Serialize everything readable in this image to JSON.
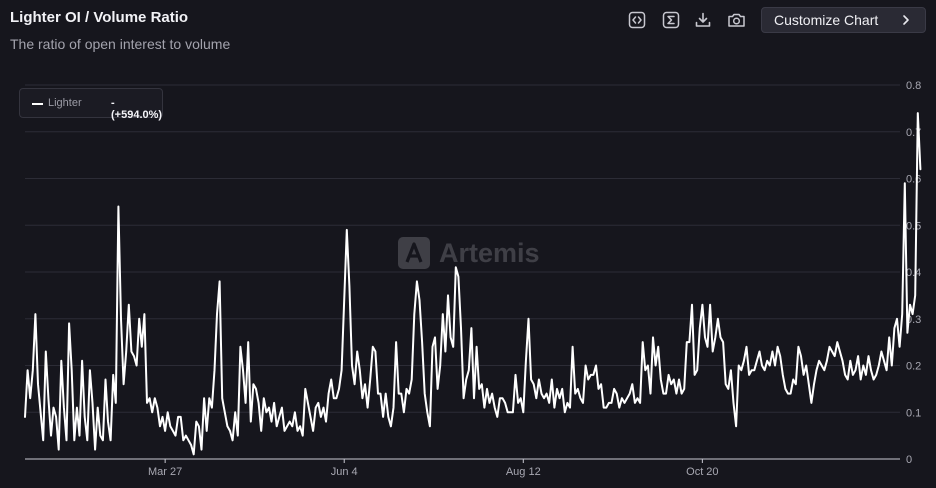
{
  "header": {
    "title": "Lighter OI / Volume Ratio",
    "subtitle": "The ratio of open interest to volume",
    "customize_label": "Customize Chart"
  },
  "toolbar": {
    "icons": [
      "embed-code-icon",
      "sigma-icon",
      "download-icon",
      "camera-icon"
    ]
  },
  "legend": {
    "name": "Lighter",
    "change": "- (+594.0%)"
  },
  "watermark": {
    "text": "Artemis"
  },
  "colors": {
    "background": "#16161d",
    "line": "#ffffff",
    "grid": "#2c2c36",
    "axis_text": "#a8a8b2"
  },
  "chart_data": {
    "type": "line",
    "title": "Lighter OI / Volume Ratio",
    "subtitle": "The ratio of open interest to volume",
    "xlabel": "",
    "ylabel": "",
    "x_tick_labels": [
      "Mar 27",
      "Jun 4",
      "Aug 12",
      "Oct 20"
    ],
    "x_tick_days": [
      54,
      123,
      192,
      261
    ],
    "x_range_days": [
      0,
      336
    ],
    "y_ticks": [
      0,
      0.1,
      0.2,
      0.3,
      0.4,
      0.5,
      0.6,
      0.7,
      0.8
    ],
    "ylim": [
      0,
      0.8
    ],
    "y_axis_side": "right",
    "grid": true,
    "legend_position": "top-left",
    "series": [
      {
        "name": "Lighter",
        "x_day_step": 1,
        "values": [
          0.09,
          0.19,
          0.13,
          0.19,
          0.31,
          0.16,
          0.1,
          0.04,
          0.23,
          0.13,
          0.05,
          0.11,
          0.09,
          0.02,
          0.21,
          0.11,
          0.04,
          0.29,
          0.19,
          0.04,
          0.11,
          0.05,
          0.21,
          0.09,
          0.04,
          0.19,
          0.12,
          0.02,
          0.11,
          0.05,
          0.04,
          0.17,
          0.08,
          0.04,
          0.18,
          0.12,
          0.54,
          0.3,
          0.16,
          0.23,
          0.33,
          0.23,
          0.22,
          0.2,
          0.3,
          0.24,
          0.31,
          0.12,
          0.13,
          0.1,
          0.13,
          0.11,
          0.07,
          0.09,
          0.06,
          0.1,
          0.07,
          0.06,
          0.05,
          0.09,
          0.09,
          0.04,
          0.05,
          0.04,
          0.03,
          0.01,
          0.08,
          0.07,
          0.02,
          0.13,
          0.06,
          0.13,
          0.11,
          0.19,
          0.31,
          0.38,
          0.13,
          0.1,
          0.07,
          0.06,
          0.04,
          0.1,
          0.05,
          0.24,
          0.19,
          0.12,
          0.25,
          0.08,
          0.16,
          0.15,
          0.12,
          0.06,
          0.13,
          0.1,
          0.11,
          0.08,
          0.12,
          0.07,
          0.09,
          0.11,
          0.06,
          0.07,
          0.08,
          0.07,
          0.1,
          0.06,
          0.07,
          0.05,
          0.15,
          0.12,
          0.09,
          0.06,
          0.11,
          0.12,
          0.09,
          0.11,
          0.08,
          0.14,
          0.17,
          0.13,
          0.13,
          0.15,
          0.19,
          0.34,
          0.49,
          0.37,
          0.2,
          0.16,
          0.23,
          0.19,
          0.13,
          0.16,
          0.11,
          0.17,
          0.24,
          0.23,
          0.14,
          0.14,
          0.09,
          0.14,
          0.09,
          0.07,
          0.11,
          0.25,
          0.14,
          0.14,
          0.1,
          0.15,
          0.14,
          0.17,
          0.31,
          0.38,
          0.34,
          0.25,
          0.14,
          0.1,
          0.07,
          0.24,
          0.26,
          0.15,
          0.2,
          0.31,
          0.23,
          0.35,
          0.26,
          0.24,
          0.41,
          0.39,
          0.28,
          0.13,
          0.17,
          0.19,
          0.28,
          0.13,
          0.24,
          0.15,
          0.16,
          0.11,
          0.15,
          0.12,
          0.14,
          0.11,
          0.09,
          0.13,
          0.13,
          0.12,
          0.1,
          0.1,
          0.1,
          0.18,
          0.12,
          0.13,
          0.1,
          0.21,
          0.3,
          0.17,
          0.16,
          0.13,
          0.17,
          0.14,
          0.13,
          0.14,
          0.12,
          0.17,
          0.11,
          0.15,
          0.13,
          0.15,
          0.1,
          0.12,
          0.11,
          0.24,
          0.14,
          0.15,
          0.13,
          0.12,
          0.2,
          0.17,
          0.18,
          0.18,
          0.2,
          0.15,
          0.16,
          0.11,
          0.11,
          0.12,
          0.12,
          0.15,
          0.14,
          0.11,
          0.13,
          0.12,
          0.13,
          0.14,
          0.16,
          0.12,
          0.13,
          0.12,
          0.25,
          0.19,
          0.2,
          0.14,
          0.26,
          0.2,
          0.24,
          0.17,
          0.14,
          0.14,
          0.18,
          0.16,
          0.17,
          0.14,
          0.17,
          0.14,
          0.15,
          0.25,
          0.25,
          0.33,
          0.18,
          0.19,
          0.28,
          0.33,
          0.26,
          0.24,
          0.33,
          0.23,
          0.26,
          0.3,
          0.26,
          0.25,
          0.16,
          0.15,
          0.19,
          0.12,
          0.07,
          0.2,
          0.19,
          0.21,
          0.24,
          0.18,
          0.19,
          0.19,
          0.21,
          0.23,
          0.2,
          0.19,
          0.21,
          0.2,
          0.23,
          0.2,
          0.24,
          0.22,
          0.18,
          0.15,
          0.14,
          0.14,
          0.17,
          0.16,
          0.24,
          0.22,
          0.18,
          0.2,
          0.16,
          0.12,
          0.16,
          0.19,
          0.21,
          0.2,
          0.19,
          0.21,
          0.24,
          0.23,
          0.22,
          0.25,
          0.23,
          0.21,
          0.18,
          0.17,
          0.21,
          0.18,
          0.19,
          0.22,
          0.17,
          0.2,
          0.18,
          0.22,
          0.19,
          0.17,
          0.18,
          0.2,
          0.23,
          0.21,
          0.19,
          0.26,
          0.2,
          0.28,
          0.3,
          0.24,
          0.31,
          0.59,
          0.27,
          0.33,
          0.31,
          0.35,
          0.74,
          0.62
        ]
      }
    ]
  }
}
